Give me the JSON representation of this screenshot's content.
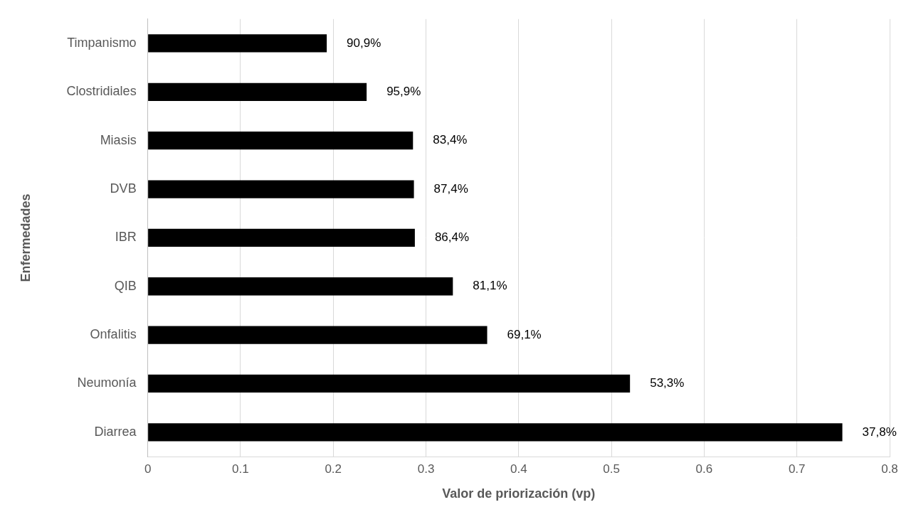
{
  "chart_data": {
    "type": "bar",
    "orientation": "horizontal",
    "x_label": "Valor de priorización (vp)",
    "y_label": "Enfermedades",
    "categories": [
      "Timpanismo",
      "Clostridiales",
      "Miasis",
      "DVB",
      "IBR",
      "QIB",
      "Onfalitis",
      "Neumonía",
      "Diarrea"
    ],
    "values": [
      0.193,
      0.236,
      0.286,
      0.287,
      0.288,
      0.329,
      0.366,
      0.52,
      0.749
    ],
    "annotations": [
      "90,9%",
      "95,9%",
      "83,4%",
      "87,4%",
      "86,4%",
      "81,1%",
      "69,1%",
      "53,3%",
      "37,8%"
    ],
    "color": "#000000",
    "xlim": [
      0,
      0.8
    ],
    "xticks": [
      0,
      0.1,
      0.2,
      0.3,
      0.4,
      0.5,
      0.6,
      0.7,
      0.8
    ],
    "grid": true
  }
}
